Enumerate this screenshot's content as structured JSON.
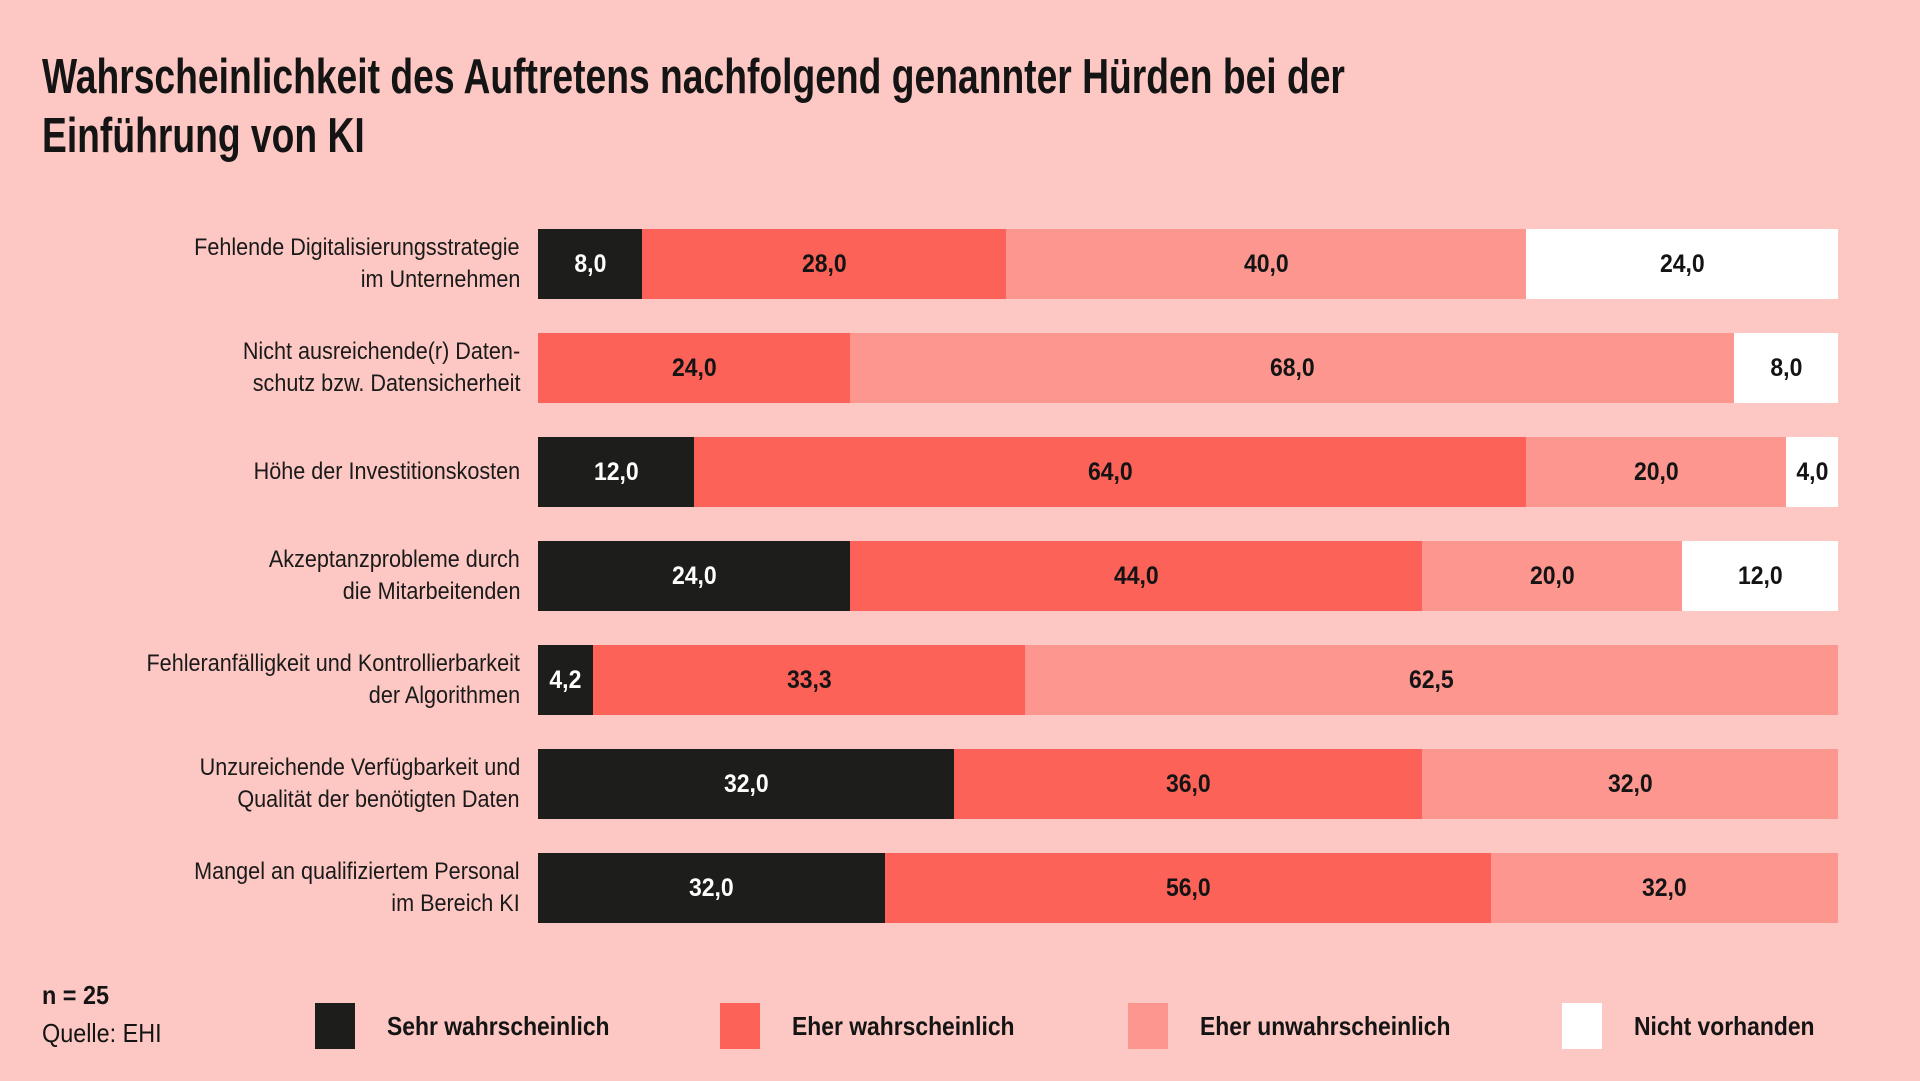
{
  "header": {
    "title_line1": "Wahrscheinlichkeit des Auftretens nachfolgend genannter Hürden bei der",
    "title_line2": "Einführung von KI"
  },
  "footer": {
    "n_label": "n = 25",
    "source_label": "Quelle: EHI"
  },
  "colors": {
    "background": "#fdc8c3",
    "sehr_wahrscheinlich": "#1d1d1b",
    "eher_wahrscheinlich": "#fc6257",
    "eher_unwahrscheinlich": "#fc968e",
    "nicht_vorhanden": "#ffffff",
    "text": "#141414"
  },
  "chart_data": {
    "type": "bar",
    "orientation": "horizontal-stacked",
    "title": "Wahrscheinlichkeit des Auftretens nachfolgend genannter Hürden bei der Einführung von KI",
    "unit": "percent",
    "x_range": [
      0,
      100
    ],
    "legend_position": "bottom",
    "value_label_format": "one decimal, comma separator",
    "n": "n = 25",
    "source": "Quelle: EHI",
    "categories": [
      "Fehlende Digitalisierungsstrategie im Unternehmen",
      "Nicht ausreichende(r) Datenschutz bzw. Datensicherheit",
      "Höhe der Investitionskosten",
      "Akzeptanzprobleme durch die Mitarbeitenden",
      "Fehleranfälligkeit und Kontrollierbarkeit der Algorithmen",
      "Unzureichende Verfügbarkeit und Qualität der benötigten Daten",
      "Mangel an qualifiziertem Personal im Bereich KI"
    ],
    "categories_lines": [
      [
        "Fehlende Digitalisierungsstrategie",
        "im Unternehmen"
      ],
      [
        "Nicht ausreichende(r) Daten-",
        "schutz bzw. Datensicherheit"
      ],
      [
        "Höhe der Investitionskosten"
      ],
      [
        "Akzeptanzprobleme durch",
        "die Mitarbeitenden"
      ],
      [
        "Fehleranfälligkeit und Kontrollierbarkeit",
        "der Algorithmen"
      ],
      [
        "Unzureichende Verfügbarkeit und",
        "Qualität der benötigten Daten"
      ],
      [
        "Mangel an qualifiziertem Personal",
        "im Bereich KI"
      ]
    ],
    "series": [
      {
        "name": "Sehr wahrscheinlich",
        "color": "#1d1d1b",
        "values": [
          8.0,
          0,
          12.0,
          24.0,
          4.2,
          32.0,
          32.0
        ]
      },
      {
        "name": "Eher wahrscheinlich",
        "color": "#fc6257",
        "values": [
          28.0,
          24.0,
          64.0,
          44.0,
          33.3,
          36.0,
          56.0
        ]
      },
      {
        "name": "Eher unwahrscheinlich",
        "color": "#fc968e",
        "values": [
          40.0,
          68.0,
          20.0,
          20.0,
          62.5,
          32.0,
          32.0
        ]
      },
      {
        "name": "Nicht vorhanden",
        "color": "#ffffff",
        "values": [
          24.0,
          8.0,
          4.0,
          12.0,
          0,
          0,
          0
        ]
      }
    ]
  }
}
